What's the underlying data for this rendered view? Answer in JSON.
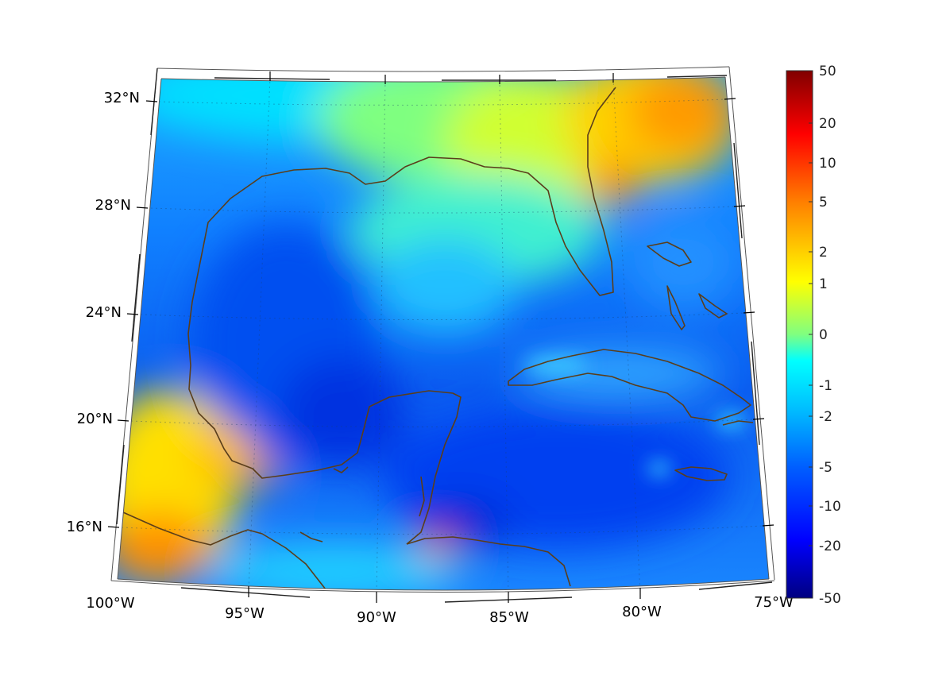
{
  "map": {
    "longitude_labels": [
      "100°W",
      "95°W",
      "90°W",
      "85°W",
      "80°W",
      "75°W"
    ],
    "latitude_labels": [
      "32°N",
      "28°N",
      "24°N",
      "20°N",
      "16°N"
    ],
    "lon_extent": [
      "100°W",
      "75°W"
    ],
    "lat_extent": [
      "14°N",
      "33°N"
    ],
    "coastline_color": "#5a3e1b",
    "grid": "dotted"
  },
  "colorbar": {
    "labels": [
      "50",
      "20",
      "10",
      "5",
      "2",
      "1",
      "0",
      "-1",
      "-2",
      "-5",
      "-10",
      "-20",
      "-50"
    ],
    "colormap": "jet",
    "colors": [
      "#000080",
      "#0000ff",
      "#0080ff",
      "#00ffff",
      "#80ff80",
      "#ffff00",
      "#ff8000",
      "#ff0000",
      "#800000"
    ]
  }
}
